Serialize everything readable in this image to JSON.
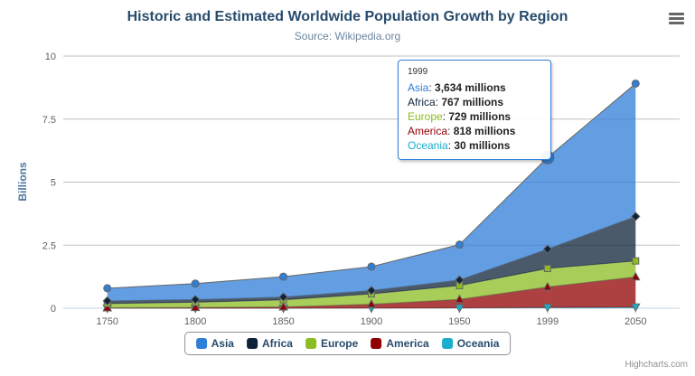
{
  "chart": {
    "title": "Historic and Estimated Worldwide Population Growth by Region",
    "subtitle": "Source: Wikipedia.org",
    "credits": "Highcharts.com"
  },
  "chart_data": {
    "type": "area",
    "stacking": "normal",
    "values_unit": "millions",
    "categories": [
      "1750",
      "1800",
      "1850",
      "1900",
      "1950",
      "1999",
      "2050"
    ],
    "y_axis": {
      "title": "Billions",
      "max": 10,
      "ticks": [
        {
          "value": 0,
          "label": "0"
        },
        {
          "value": 2.5,
          "label": "2.5"
        },
        {
          "value": 5,
          "label": "5"
        },
        {
          "value": 7.5,
          "label": "7.5"
        },
        {
          "value": 10,
          "label": "10"
        }
      ]
    },
    "line_color": "#666666",
    "grid_color": "#C0C0C0",
    "axis_color": "#C0D0E0",
    "series": [
      {
        "name": "Asia",
        "color": "#2f7ed8",
        "marker": "circle",
        "values": [
          502,
          635,
          809,
          947,
          1402,
          3634,
          5268
        ]
      },
      {
        "name": "Africa",
        "color": "#0d233a",
        "marker": "diamond",
        "values": [
          106,
          107,
          111,
          133,
          221,
          767,
          1766
        ]
      },
      {
        "name": "Europe",
        "color": "#8bbc21",
        "marker": "square",
        "values": [
          163,
          203,
          276,
          408,
          547,
          729,
          628
        ]
      },
      {
        "name": "America",
        "color": "#910000",
        "marker": "triangle",
        "values": [
          18,
          31,
          54,
          156,
          339,
          818,
          1201
        ]
      },
      {
        "name": "Oceania",
        "color": "#1aadce",
        "marker": "triangle-down",
        "values": [
          2,
          2,
          2,
          6,
          13,
          30,
          46
        ]
      }
    ],
    "stack_order_bottom_to_top": [
      "Oceania",
      "America",
      "Europe",
      "Africa",
      "Asia"
    ],
    "legend": {
      "position": "bottom",
      "items": [
        "Asia",
        "Africa",
        "Europe",
        "America",
        "Oceania"
      ]
    }
  },
  "tooltip": {
    "header": "1999",
    "border_color": "#2f7ed8",
    "hover": {
      "series": "Asia",
      "category": "1999",
      "category_index": 5
    },
    "rows": [
      {
        "name": "Asia",
        "color": "#2f7ed8",
        "value": "3,634",
        "suffix": " millions"
      },
      {
        "name": "Africa",
        "color": "#0d233a",
        "value": "767",
        "suffix": " millions"
      },
      {
        "name": "Europe",
        "color": "#8bbc21",
        "value": "729",
        "suffix": " millions"
      },
      {
        "name": "America",
        "color": "#910000",
        "value": "818",
        "suffix": " millions"
      },
      {
        "name": "Oceania",
        "color": "#1aadce",
        "value": "30",
        "suffix": " millions"
      }
    ]
  }
}
